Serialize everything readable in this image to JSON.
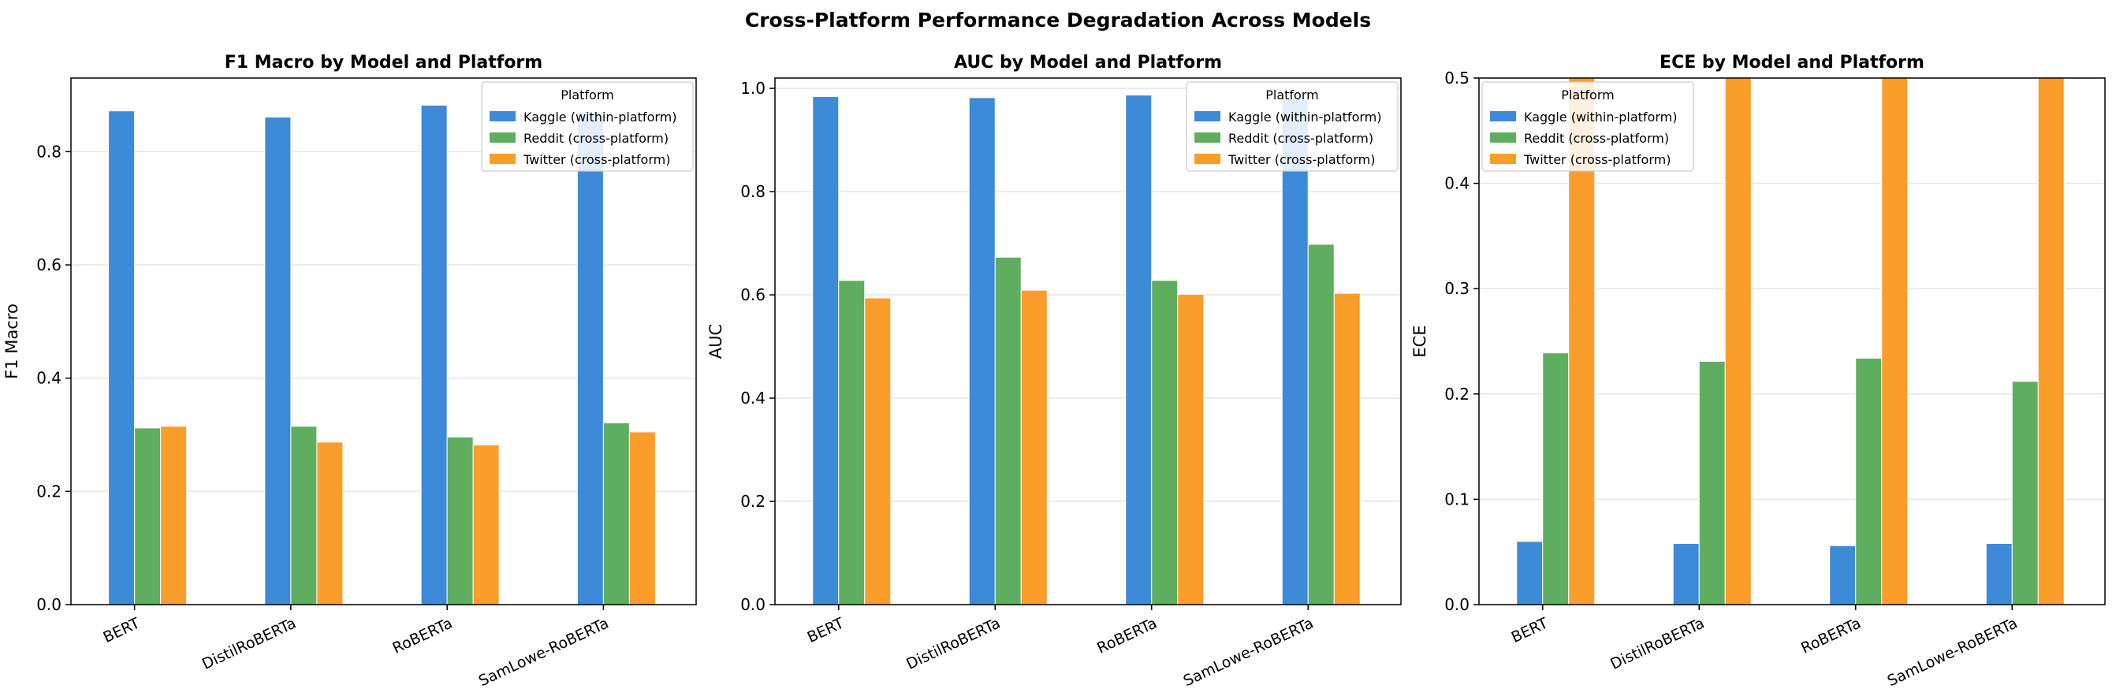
{
  "figure_title": "Cross-Platform Performance Degradation Across Models",
  "legend_title": "Platform",
  "colors": {
    "kaggle": "#3c8ad8",
    "reddit": "#5fae5f",
    "twitter": "#fb9d2a",
    "grid": "#e6e6e6",
    "axis": "#000000"
  },
  "chart_data": [
    {
      "type": "bar",
      "title": "F1 Macro by Model and Platform",
      "ylabel": "F1 Macro",
      "ylim": [
        0,
        0.93
      ],
      "yticks": [
        "0.0",
        "0.2",
        "0.4",
        "0.6",
        "0.8"
      ],
      "grid": "y",
      "legend_placement": "top-right",
      "categories": [
        "BERT",
        "DistilRoBERTa",
        "RoBERTa",
        "SamLowe-RoBERTa"
      ],
      "series": [
        {
          "name": "Kaggle (within-platform)",
          "values": [
            0.872,
            0.861,
            0.882,
            0.87
          ]
        },
        {
          "name": "Reddit (cross-platform)",
          "values": [
            0.312,
            0.315,
            0.296,
            0.321
          ]
        },
        {
          "name": "Twitter (cross-platform)",
          "values": [
            0.315,
            0.287,
            0.282,
            0.305
          ]
        }
      ]
    },
    {
      "type": "bar",
      "title": "AUC by Model and Platform",
      "ylabel": "AUC",
      "ylim": [
        0,
        1.02
      ],
      "yticks": [
        "0.0",
        "0.2",
        "0.4",
        "0.6",
        "0.8",
        "1.0"
      ],
      "grid": "y",
      "legend_placement": "top-right",
      "categories": [
        "BERT",
        "DistilRoBERTa",
        "RoBERTa",
        "SamLowe-RoBERTa"
      ],
      "series": [
        {
          "name": "Kaggle (within-platform)",
          "values": [
            0.984,
            0.982,
            0.987,
            0.98
          ]
        },
        {
          "name": "Reddit (cross-platform)",
          "values": [
            0.628,
            0.673,
            0.628,
            0.698
          ]
        },
        {
          "name": "Twitter (cross-platform)",
          "values": [
            0.594,
            0.609,
            0.601,
            0.603
          ]
        }
      ]
    },
    {
      "type": "bar",
      "title": "ECE by Model and Platform",
      "ylabel": "ECE",
      "ylim": [
        0,
        0.5
      ],
      "yticks": [
        "0.0",
        "0.1",
        "0.2",
        "0.3",
        "0.4",
        "0.5"
      ],
      "grid": "y",
      "legend_placement": "top-left",
      "categories": [
        "BERT",
        "DistilRoBERTa",
        "RoBERTa",
        "SamLowe-RoBERTa"
      ],
      "series": [
        {
          "name": "Kaggle (within-platform)",
          "values": [
            0.06,
            0.058,
            0.056,
            0.058
          ]
        },
        {
          "name": "Reddit (cross-platform)",
          "values": [
            0.239,
            0.231,
            0.234,
            0.212
          ]
        },
        {
          "name": "Twitter (cross-platform)",
          "values": [
            0.5,
            0.5,
            0.5,
            0.5
          ]
        }
      ]
    }
  ]
}
